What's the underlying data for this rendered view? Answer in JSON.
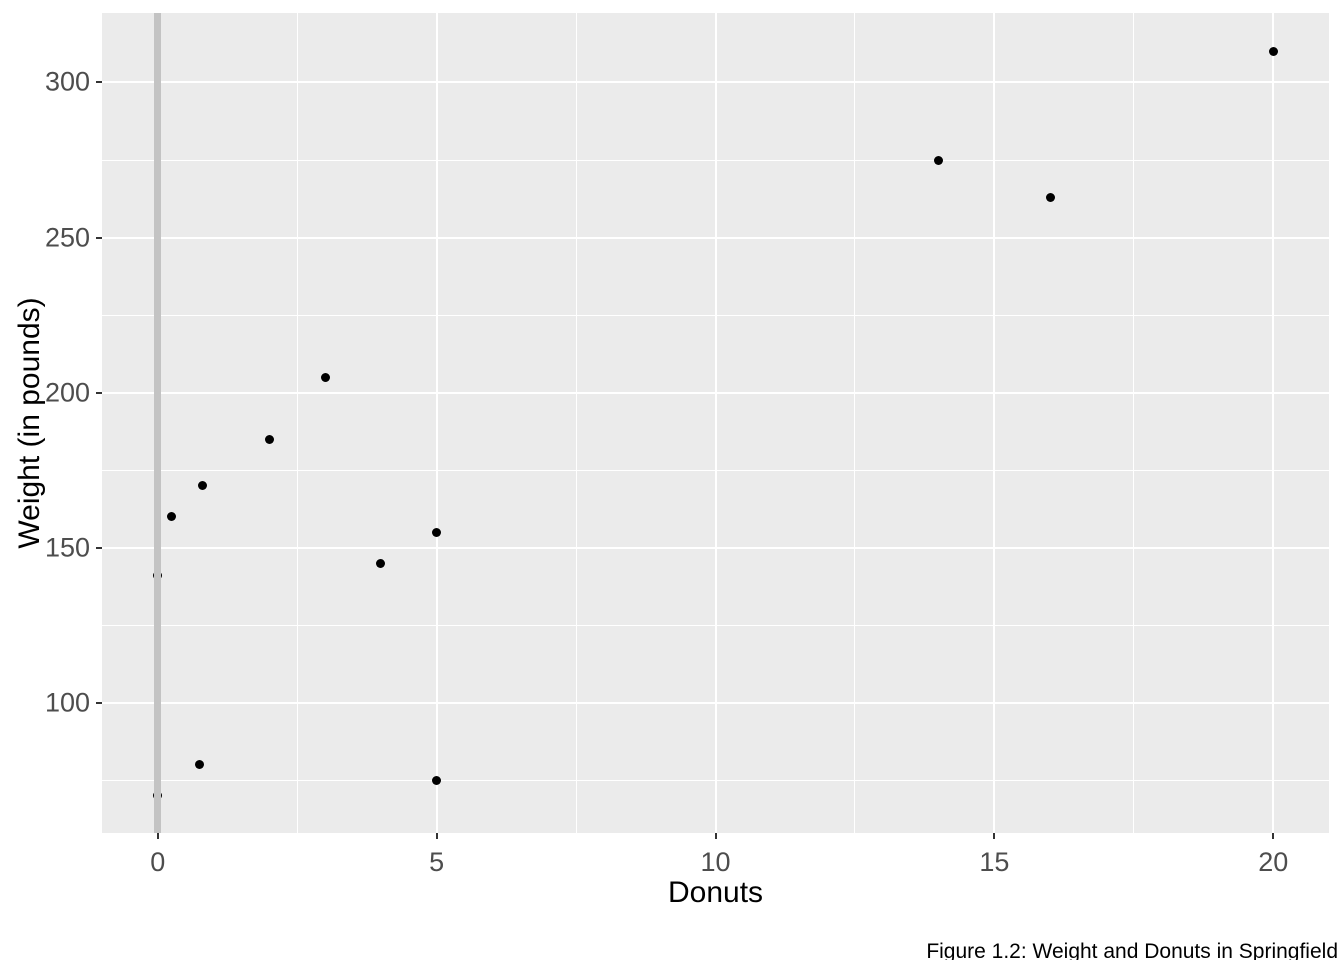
{
  "figure": {
    "xlabel": "Donuts",
    "ylabel": "Weight (in pounds)",
    "caption": "Figure 1.2: Weight and Donuts in Springfield"
  },
  "chart_data": {
    "type": "scatter",
    "title": "",
    "xlabel": "Donuts",
    "ylabel": "Weight (in pounds)",
    "caption": "Figure 1.2: Weight and Donuts in Springfield",
    "points": [
      {
        "x": 0,
        "y": 70
      },
      {
        "x": 0,
        "y": 141
      },
      {
        "x": 0.25,
        "y": 160
      },
      {
        "x": 0.75,
        "y": 80
      },
      {
        "x": 0.8,
        "y": 170
      },
      {
        "x": 2,
        "y": 185
      },
      {
        "x": 3,
        "y": 205
      },
      {
        "x": 4,
        "y": 145
      },
      {
        "x": 5,
        "y": 75
      },
      {
        "x": 5,
        "y": 155
      },
      {
        "x": 14,
        "y": 275
      },
      {
        "x": 16,
        "y": 263
      },
      {
        "x": 20,
        "y": 310
      }
    ],
    "x_major_ticks": [
      0,
      5,
      10,
      15,
      20
    ],
    "y_major_ticks": [
      100,
      150,
      200,
      250,
      300
    ],
    "x_minor_ticks": [
      2.5,
      7.5,
      12.5,
      17.5
    ],
    "y_minor_ticks": [
      75,
      125,
      175,
      225,
      275
    ],
    "xlim": [
      -1,
      21
    ],
    "ylim": [
      58,
      322.4
    ],
    "reference_vline_x": 0,
    "grid": "on",
    "legend": "none",
    "colors": {
      "panel_background": "#EBEBEB",
      "gridline": "#FFFFFF",
      "point": "#000000",
      "vline": "#C3C3C3",
      "tick_text": "#4D4D4D",
      "tick_mark": "#333333",
      "title_text": "#000000"
    }
  }
}
